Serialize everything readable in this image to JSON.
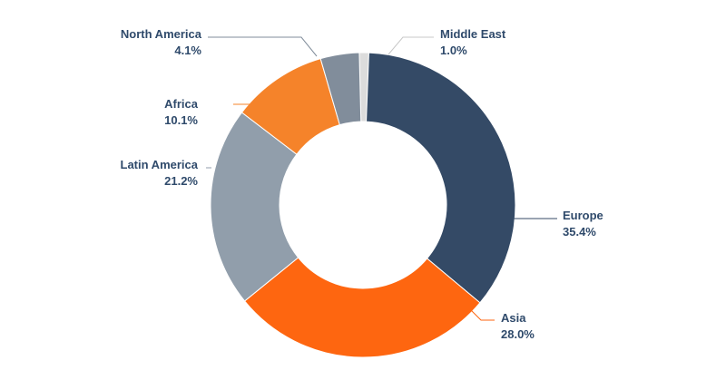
{
  "chart_data": {
    "type": "donut",
    "title": "",
    "legend": "none",
    "slices": [
      {
        "name": "Middle East",
        "value_label": "1.0%",
        "value": 1.0,
        "color": "#dcdcdc"
      },
      {
        "name": "Europe",
        "value_label": "35.4%",
        "value": 35.4,
        "color": "#344a66"
      },
      {
        "name": "Asia",
        "value_label": "28.0%",
        "value": 28.0,
        "color": "#fe6610"
      },
      {
        "name": "Latin America",
        "value_label": "21.2%",
        "value": 21.2,
        "color": "#919eab"
      },
      {
        "name": "Africa",
        "value_label": "10.1%",
        "value": 10.1,
        "color": "#f5832a"
      },
      {
        "name": "North America",
        "value_label": "4.1%",
        "value": 4.1,
        "color": "#818d9b"
      }
    ]
  }
}
